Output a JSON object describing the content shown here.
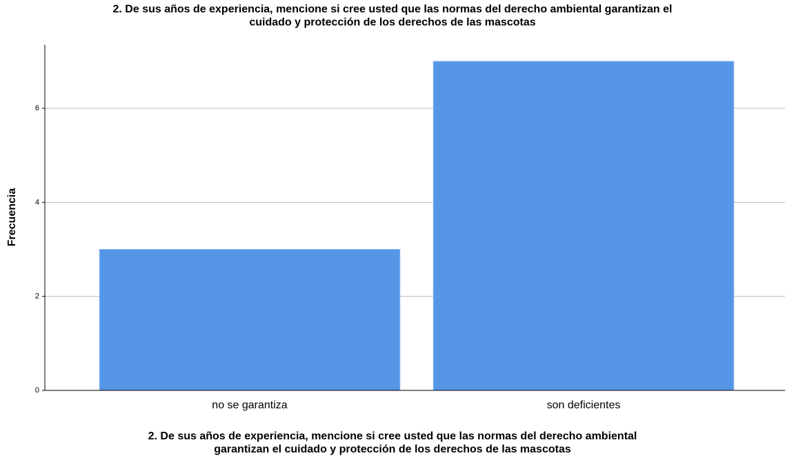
{
  "chart_data": {
    "type": "bar",
    "title": [
      "2. De sus años de experiencia, mencione si cree usted que las normas del derecho ambiental garantizan el",
      "cuidado y protección de los derechos de las mascotas"
    ],
    "x_label": [
      "2. De sus años de experiencia, mencione si cree usted que las normas del derecho ambiental",
      "garantizan el cuidado y protección de los derechos de las mascotas"
    ],
    "y_label": "Frecuencia",
    "categories": [
      "no se garantiza",
      "son deficientes"
    ],
    "values": [
      3,
      7
    ],
    "color": "#5596e6",
    "ylim": [
      0,
      7.35
    ],
    "yticks": [
      0,
      2,
      4,
      6
    ],
    "grid": true
  }
}
